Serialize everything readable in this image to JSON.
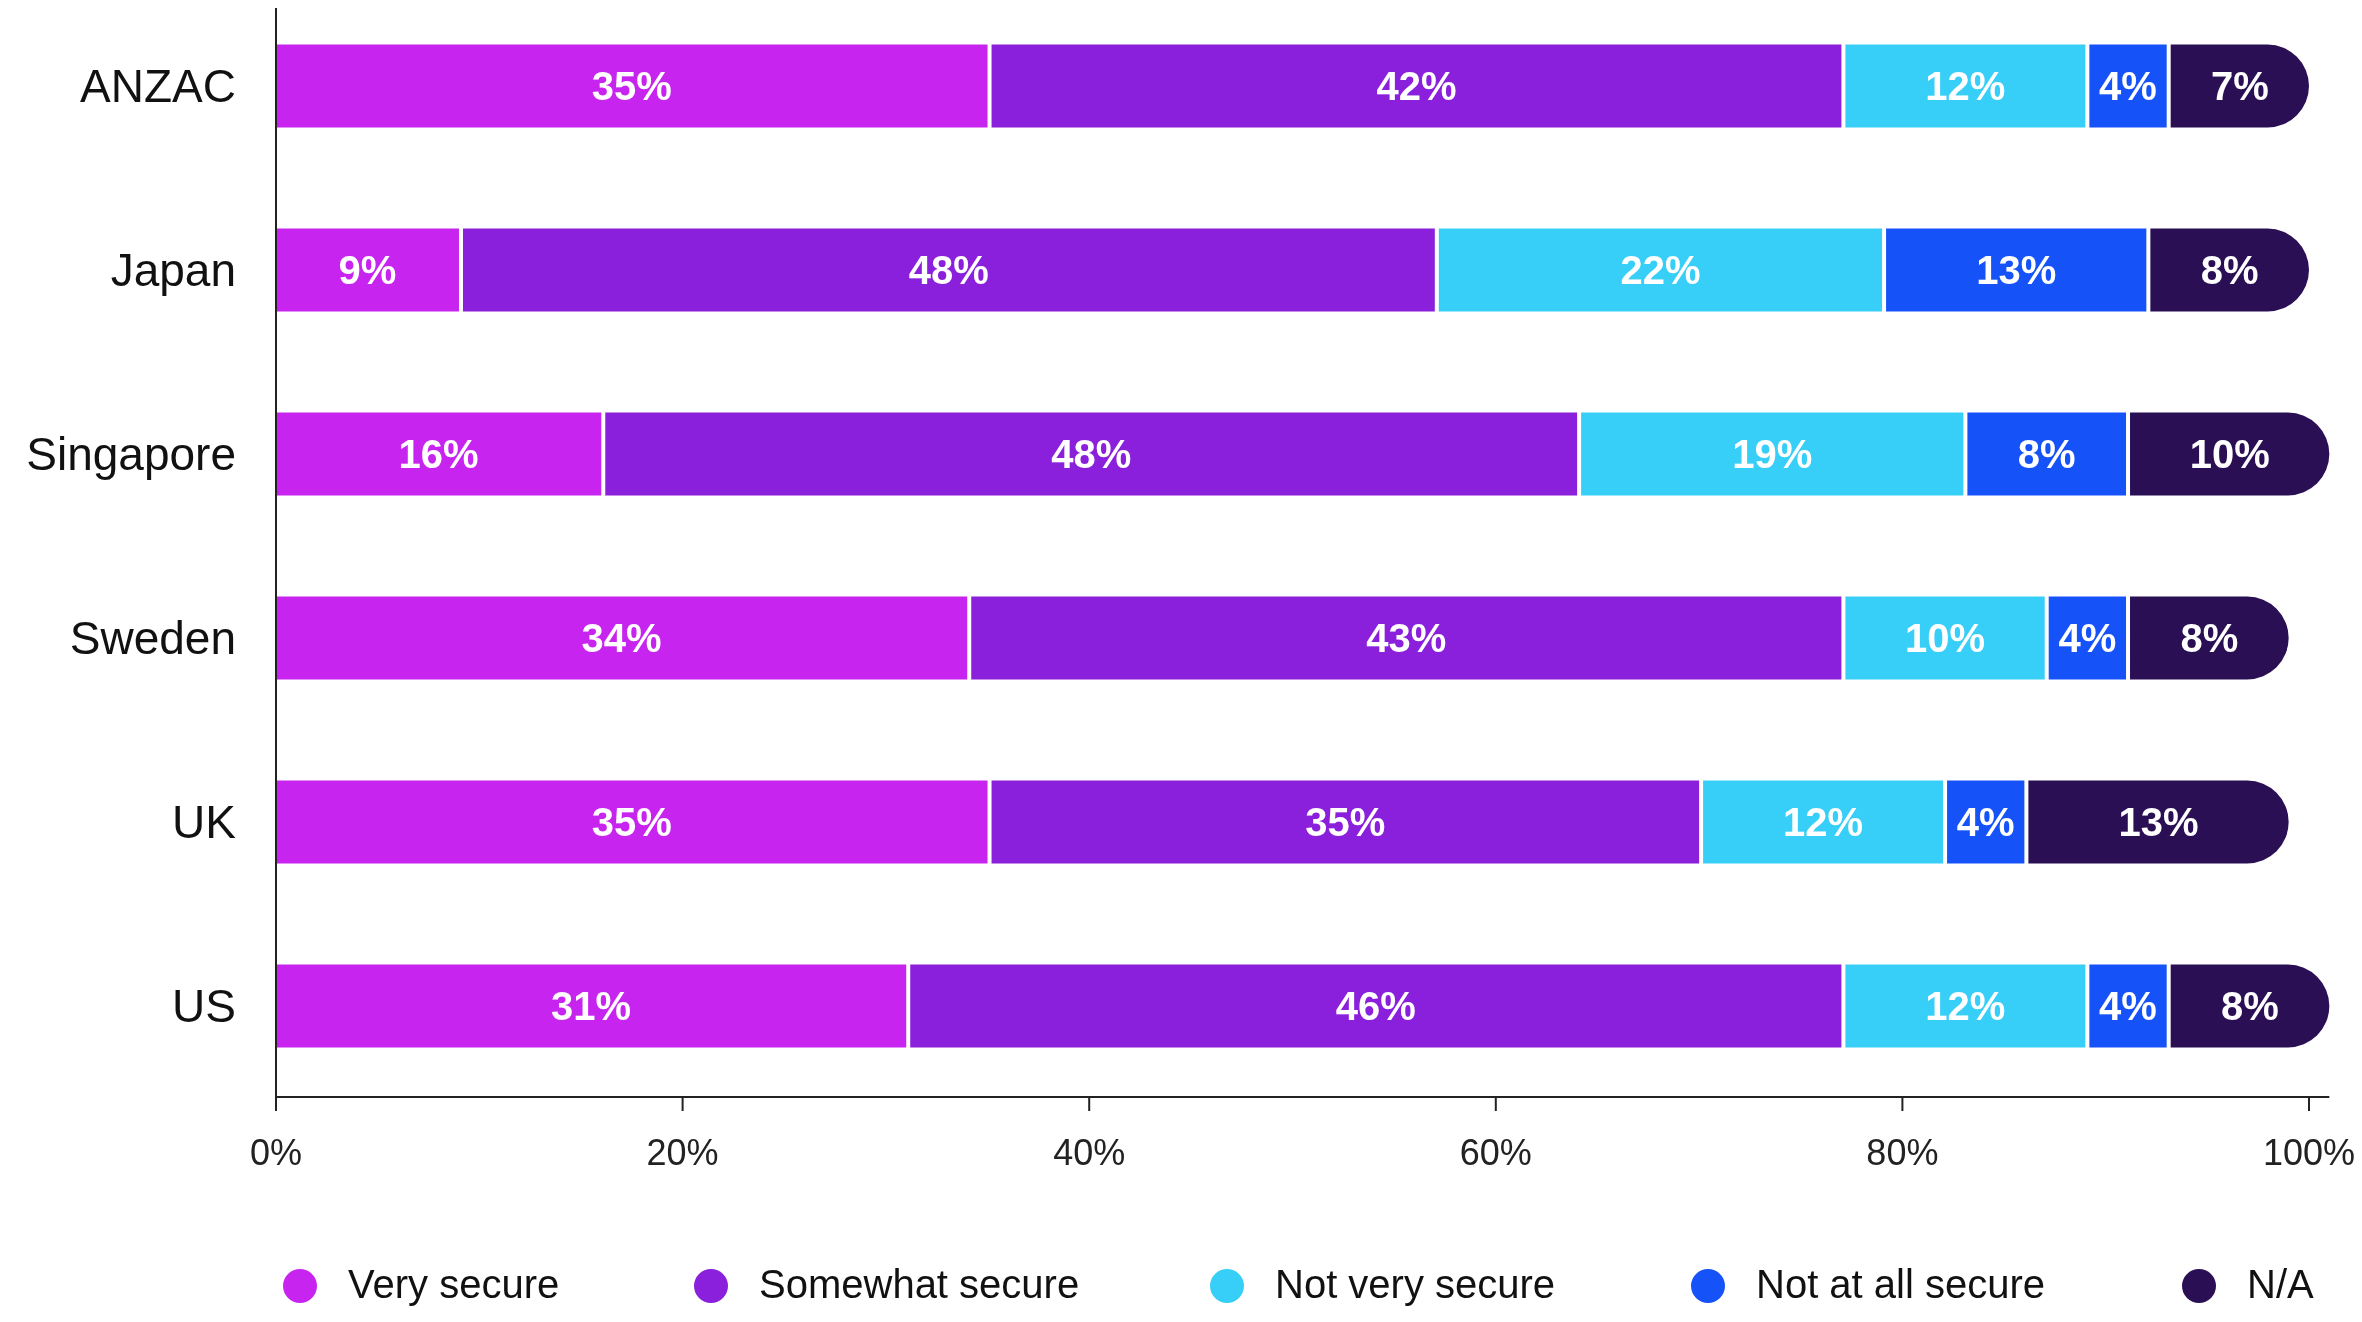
{
  "chart_data": {
    "type": "bar",
    "orientation": "horizontal",
    "stacked": true,
    "categories": [
      "ANZAC",
      "Japan",
      "Singapore",
      "Sweden",
      "UK",
      "US"
    ],
    "series": [
      {
        "name": "Very secure",
        "color": "#c724ef",
        "values": [
          35,
          9,
          16,
          34,
          35,
          31
        ],
        "value_labels": [
          "35%",
          "9%",
          "16%",
          "34%",
          "35%",
          "31%"
        ]
      },
      {
        "name": "Somewhat secure",
        "color": "#8a1fdc",
        "values": [
          42,
          48,
          48,
          43,
          35,
          46
        ],
        "value_labels": [
          "42%",
          "48%",
          "48%",
          "43%",
          "35%",
          "46%"
        ]
      },
      {
        "name": "Not very secure",
        "color": "#37cff7",
        "values": [
          12,
          22,
          19,
          10,
          12,
          12
        ],
        "value_labels": [
          "12%",
          "22%",
          "19%",
          "10%",
          "12%",
          "12%"
        ]
      },
      {
        "name": "Not at all secure",
        "color": "#1553f8",
        "values": [
          4,
          13,
          8,
          4,
          4,
          4
        ],
        "value_labels": [
          "4%",
          "13%",
          "8%",
          "4%",
          "4%",
          "4%"
        ]
      },
      {
        "name": "N/A",
        "color": "#2a0f55",
        "values": [
          7,
          8,
          10,
          8,
          13,
          8
        ],
        "value_labels": [
          "7%",
          "8%",
          "10%",
          "8%",
          "13%",
          "8%"
        ]
      }
    ],
    "xlim": [
      0,
      101
    ],
    "xticks": [
      {
        "value": 0,
        "label": "0%"
      },
      {
        "value": 20,
        "label": "20%"
      },
      {
        "value": 40,
        "label": "40%"
      },
      {
        "value": 60,
        "label": "60%"
      },
      {
        "value": 80,
        "label": "80%"
      },
      {
        "value": 100,
        "label": "100%"
      }
    ],
    "legend": "bottom"
  }
}
